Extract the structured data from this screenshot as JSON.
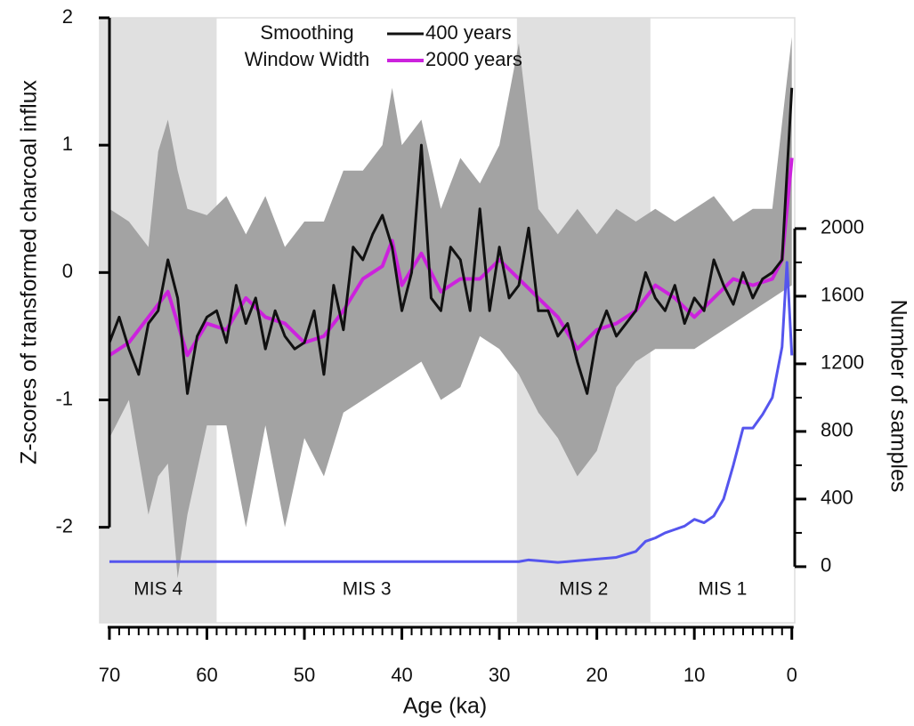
{
  "chart_data": {
    "type": "line",
    "x_label": "Age (ka)",
    "y_label": "Z-scores of transformed charcoal influx",
    "y2_label": "Number of samples",
    "legend_title": [
      "Smoothing",
      "Window Width"
    ],
    "xlim": [
      71,
      -0.3
    ],
    "xticks": [
      70,
      60,
      50,
      40,
      30,
      20,
      10,
      0
    ],
    "xminorticks": [
      69,
      68,
      67,
      66,
      65,
      64,
      63,
      62,
      61,
      59,
      58,
      57,
      56,
      55,
      54,
      53,
      52,
      51,
      49,
      48,
      47,
      46,
      45,
      44,
      43,
      42,
      41,
      39,
      38,
      37,
      36,
      35,
      34,
      33,
      32,
      31,
      29,
      28,
      27,
      26,
      25,
      24,
      23,
      22,
      21,
      19,
      18,
      17,
      16,
      15,
      14,
      13,
      12,
      11,
      9,
      8,
      7,
      6,
      5,
      4,
      3,
      2,
      1
    ],
    "ylim": [
      -2.75,
      2
    ],
    "yticks": [
      -2,
      -1,
      0,
      1,
      2
    ],
    "y2lim": [
      -332,
      3247
    ],
    "y2ticks": [
      0,
      400,
      800,
      1200,
      1600,
      2000
    ],
    "y2minorticks": [
      200,
      600,
      1000,
      1400,
      1800
    ],
    "regions": [
      {
        "label": "MIS 4",
        "start": 71,
        "end": 59,
        "shaded": true
      },
      {
        "label": "MIS 3",
        "start": 59,
        "end": 28.2,
        "shaded": false
      },
      {
        "label": "MIS 2",
        "start": 28.2,
        "end": 14.5,
        "shaded": true
      },
      {
        "label": "MIS 1",
        "start": 14.5,
        "end": -0.3,
        "shaded": false
      }
    ],
    "region_color": "#e0e0e0",
    "band": {
      "color": "#a3a3a3",
      "x": [
        70,
        68,
        66,
        65,
        64,
        63,
        62,
        60,
        58,
        56,
        54,
        52,
        50,
        48,
        46,
        44,
        42,
        41,
        40,
        38,
        36,
        34,
        32,
        30,
        28,
        26,
        24,
        22,
        20,
        18,
        16,
        14,
        12,
        10,
        8,
        6,
        4,
        2,
        0
      ],
      "upper": [
        0.5,
        0.4,
        0.2,
        0.95,
        1.2,
        0.8,
        0.5,
        0.45,
        0.6,
        0.3,
        0.6,
        0.2,
        0.4,
        0.4,
        0.8,
        0.8,
        1.0,
        1.45,
        1.0,
        1.2,
        0.5,
        0.9,
        0.7,
        1.0,
        1.8,
        0.5,
        0.3,
        0.5,
        0.3,
        0.5,
        0.4,
        0.5,
        0.4,
        0.5,
        0.6,
        0.4,
        0.5,
        0.5,
        1.85
      ],
      "lower": [
        -1.3,
        -1.0,
        -1.9,
        -1.6,
        -1.5,
        -2.4,
        -1.9,
        -1.2,
        -1.2,
        -2.0,
        -1.2,
        -2.0,
        -1.3,
        -1.6,
        -1.1,
        -1.0,
        -0.9,
        -0.85,
        -0.8,
        -0.7,
        -1.0,
        -0.9,
        -0.5,
        -0.6,
        -0.8,
        -1.1,
        -1.3,
        -1.6,
        -1.4,
        -0.9,
        -0.7,
        -0.6,
        -0.6,
        -0.6,
        -0.5,
        -0.4,
        -0.3,
        -0.2,
        -0.1
      ]
    },
    "series": [
      {
        "name": "400 years",
        "color": "#111111",
        "width": 3,
        "x": [
          70,
          69,
          68,
          67,
          66,
          65,
          64,
          63,
          62,
          61,
          60,
          59,
          58,
          57,
          56,
          55,
          54,
          53,
          52,
          51,
          50,
          49,
          48,
          47,
          46,
          45,
          44,
          43,
          42,
          41,
          40,
          39,
          38,
          37,
          36,
          35,
          34,
          33,
          32,
          31,
          30,
          29,
          28,
          27,
          26,
          25,
          24,
          23,
          22,
          21,
          20,
          19,
          18,
          17,
          16,
          15,
          14,
          13,
          12,
          11,
          10,
          9,
          8,
          7,
          6,
          5,
          4,
          3,
          2,
          1,
          0
        ],
        "values": [
          -0.55,
          -0.35,
          -0.6,
          -0.8,
          -0.4,
          -0.3,
          0.1,
          -0.2,
          -0.95,
          -0.5,
          -0.35,
          -0.3,
          -0.55,
          -0.1,
          -0.4,
          -0.2,
          -0.6,
          -0.3,
          -0.5,
          -0.6,
          -0.55,
          -0.3,
          -0.8,
          -0.1,
          -0.45,
          0.2,
          0.1,
          0.3,
          0.45,
          0.2,
          -0.3,
          0.0,
          1.0,
          -0.2,
          -0.3,
          0.2,
          0.1,
          -0.3,
          0.5,
          -0.3,
          0.2,
          -0.2,
          -0.1,
          0.35,
          -0.3,
          -0.3,
          -0.5,
          -0.4,
          -0.7,
          -0.95,
          -0.5,
          -0.3,
          -0.5,
          -0.4,
          -0.3,
          0.0,
          -0.2,
          -0.3,
          -0.1,
          -0.4,
          -0.2,
          -0.3,
          0.1,
          -0.1,
          -0.25,
          0.0,
          -0.2,
          -0.05,
          0.0,
          0.1,
          1.45
        ]
      },
      {
        "name": "2000 years",
        "color": "#cc22dd",
        "width": 4,
        "x": [
          70,
          68,
          66,
          64,
          62,
          60,
          58,
          56,
          54,
          52,
          50,
          48,
          46,
          44,
          42,
          41,
          40,
          38,
          36,
          34,
          32,
          30,
          28,
          26,
          24,
          22,
          20,
          18,
          16,
          14,
          12,
          10,
          8,
          6,
          4,
          2,
          1,
          0
        ],
        "values": [
          -0.65,
          -0.55,
          -0.35,
          -0.15,
          -0.65,
          -0.4,
          -0.45,
          -0.2,
          -0.35,
          -0.4,
          -0.55,
          -0.5,
          -0.3,
          -0.05,
          0.05,
          0.25,
          -0.1,
          0.15,
          -0.15,
          -0.05,
          -0.05,
          0.1,
          -0.05,
          -0.2,
          -0.35,
          -0.6,
          -0.45,
          -0.4,
          -0.3,
          -0.1,
          -0.2,
          -0.35,
          -0.2,
          -0.05,
          -0.1,
          -0.05,
          0.1,
          0.9
        ]
      },
      {
        "color": "#5555ee",
        "width": 3,
        "axis": "y2",
        "x": [
          70,
          60,
          50,
          40,
          30,
          28,
          27,
          26,
          24,
          22,
          20,
          18,
          16,
          15,
          14,
          13,
          12,
          11,
          10,
          9,
          8,
          7,
          6,
          5,
          4,
          3,
          2,
          1,
          0.5,
          0
        ],
        "values": [
          30,
          30,
          30,
          30,
          30,
          30,
          40,
          35,
          25,
          35,
          45,
          55,
          90,
          150,
          170,
          200,
          220,
          240,
          280,
          260,
          300,
          400,
          600,
          820,
          820,
          900,
          1000,
          1300,
          1800,
          1250
        ]
      }
    ]
  }
}
